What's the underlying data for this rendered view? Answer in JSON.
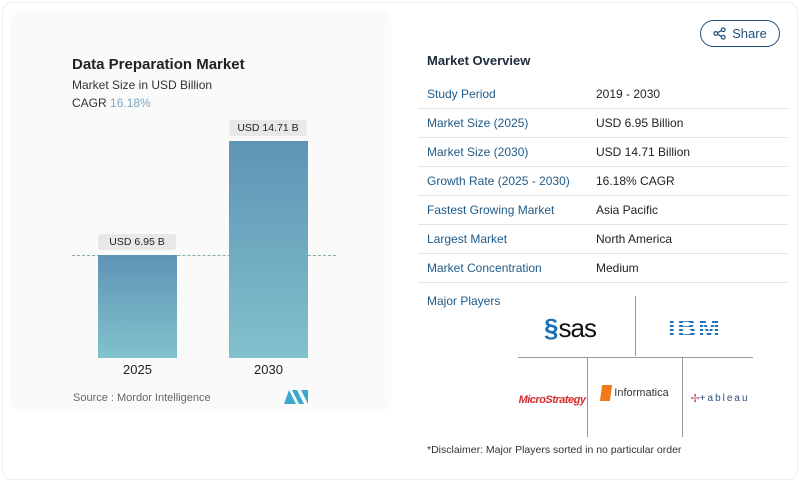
{
  "share": {
    "label": "Share",
    "icon": "share-icon"
  },
  "chart_data": {
    "type": "bar",
    "title": "Data Preparation Market",
    "subtitle": "Market Size in USD Billion",
    "cagr_label": "CAGR",
    "cagr_value": "16.18%",
    "categories": [
      "2025",
      "2030"
    ],
    "values": [
      6.95,
      14.71
    ],
    "data_labels": [
      "USD 6.95 B",
      "USD 14.71 B"
    ],
    "ylim": [
      0,
      14.71
    ],
    "grid": false,
    "reference_line": 6.95,
    "colors": {
      "bar_top": "#5f93b6",
      "bar_bottom": "#80c2cc",
      "cagr": "#7aa6c2"
    }
  },
  "source": "Source :  Mordor Intelligence",
  "overview": {
    "title": "Market Overview",
    "rows": [
      {
        "k": "Study Period",
        "v": "2019 - 2030"
      },
      {
        "k": "Market Size (2025)",
        "v": "USD 6.95 Billion"
      },
      {
        "k": "Market Size (2030)",
        "v": "USD 14.71 Billion"
      },
      {
        "k": "Growth Rate (2025 - 2030)",
        "v": "16.18% CAGR"
      },
      {
        "k": "Fastest Growing Market",
        "v": "Asia Pacific"
      },
      {
        "k": "Largest Market",
        "v": "North America"
      },
      {
        "k": "Market Concentration",
        "v": "Medium"
      }
    ]
  },
  "players": {
    "title": "Major Players",
    "logos": [
      "sas",
      "IBM",
      "MicroStrategy",
      "Informatica",
      "tableau"
    ]
  },
  "disclaimer": "*Disclaimer: Major Players sorted in no particular order"
}
